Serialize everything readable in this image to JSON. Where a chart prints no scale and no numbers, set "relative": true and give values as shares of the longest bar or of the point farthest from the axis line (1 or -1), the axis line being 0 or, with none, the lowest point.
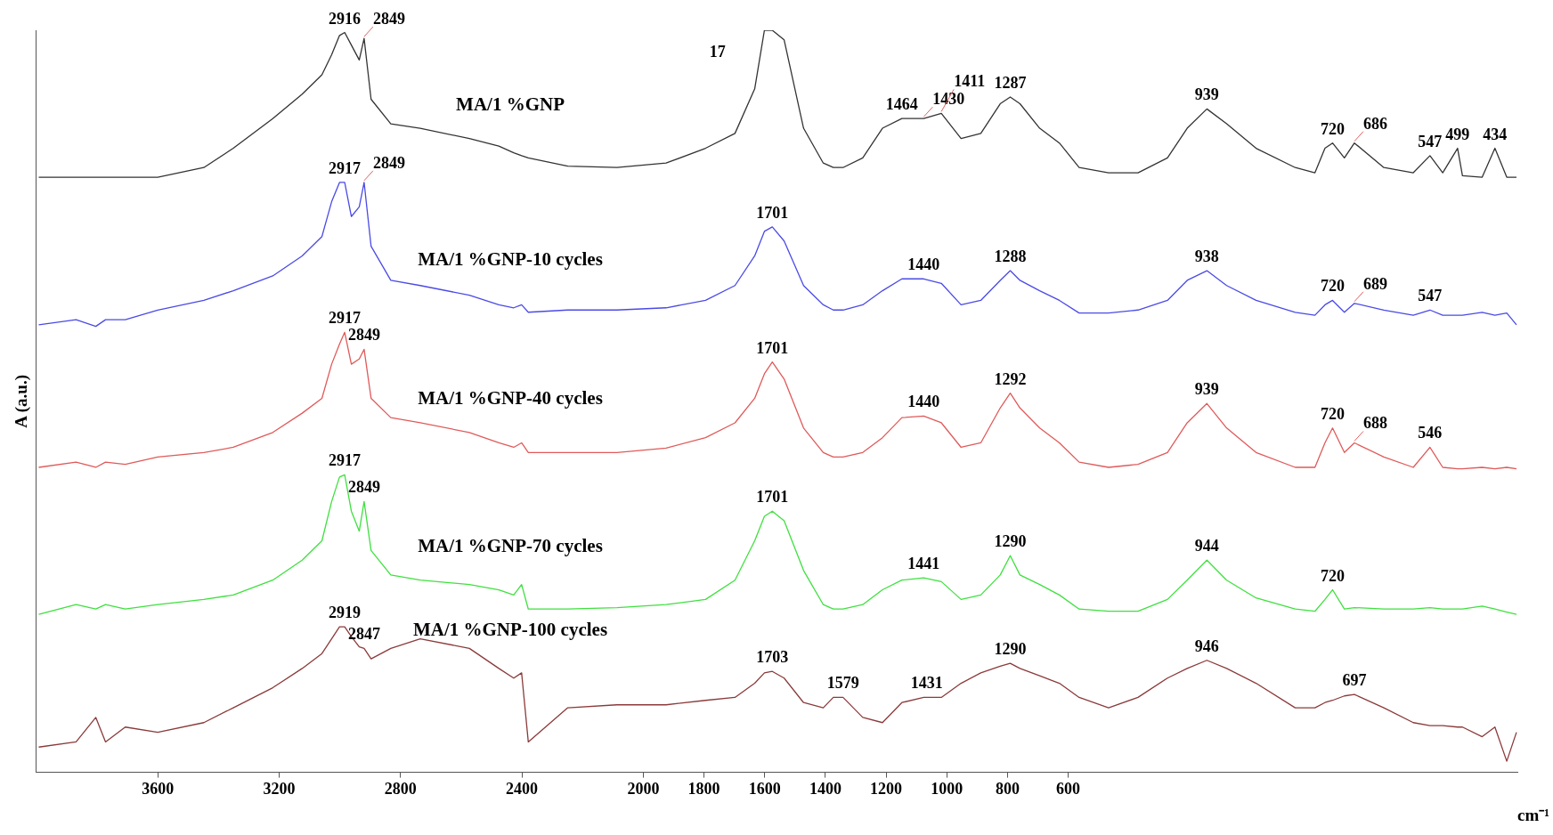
{
  "chart_data": {
    "type": "line",
    "relative": true,
    "xlabel": "cm⁻¹",
    "ylabel": "A (a.u.)",
    "xlim": [
      4000,
      -880
    ],
    "xticks": [
      3600,
      3200,
      2800,
      2400,
      2000,
      1800,
      1600,
      1400,
      1200,
      1000,
      800,
      600
    ],
    "x": [
      3992,
      3869,
      3804,
      3772,
      3707,
      3600,
      3448,
      3351,
      3221,
      3124,
      3059,
      3027,
      3001,
      2984,
      2962,
      2936,
      2920,
      2897,
      2832,
      2735,
      2573,
      2476,
      2427,
      2401,
      2379,
      2249,
      2087,
      1925,
      1795,
      1698,
      1633,
      1601,
      1575,
      1536,
      1472,
      1407,
      1374,
      1342,
      1277,
      1212,
      1148,
      1076,
      1018,
      953,
      888,
      824,
      791,
      759,
      694,
      629,
      564,
      467,
      370,
      273,
      208,
      143,
      78,
      -19,
      -148,
      -213,
      -246,
      -271,
      -310,
      -343,
      -440,
      -537,
      -592,
      -634,
      -683,
      -699,
      -764,
      -806,
      -845,
      -877
    ],
    "series": [
      {
        "name": "MA/1 %GNP",
        "color": "#333333",
        "values": [
          0.802,
          0.802,
          0.802,
          0.802,
          0.802,
          0.802,
          0.815,
          0.841,
          0.881,
          0.914,
          0.94,
          0.967,
          0.993,
          0.997,
          0.98,
          0.96,
          0.989,
          0.907,
          0.874,
          0.868,
          0.854,
          0.844,
          0.835,
          0.831,
          0.828,
          0.817,
          0.815,
          0.821,
          0.841,
          0.861,
          0.921,
          1,
          1,
          0.987,
          0.868,
          0.821,
          0.815,
          0.815,
          0.828,
          0.868,
          0.881,
          0.881,
          0.888,
          0.854,
          0.861,
          0.901,
          0.91,
          0.901,
          0.868,
          0.848,
          0.815,
          0.808,
          0.808,
          0.828,
          0.868,
          0.894,
          0.874,
          0.841,
          0.815,
          0.808,
          0.841,
          0.848,
          0.828,
          0.848,
          0.815,
          0.808,
          0.831,
          0.808,
          0.841,
          0.804,
          0.802,
          0.841,
          0.802,
          0.802
        ]
      },
      {
        "name": "MA/1 %GNP-10 cycles",
        "color": "#4a4ae6",
        "values": [
          0.603,
          0.61,
          0.601,
          0.61,
          0.61,
          0.623,
          0.636,
          0.649,
          0.669,
          0.696,
          0.722,
          0.769,
          0.795,
          0.795,
          0.749,
          0.762,
          0.795,
          0.709,
          0.663,
          0.656,
          0.643,
          0.63,
          0.626,
          0.63,
          0.62,
          0.623,
          0.623,
          0.626,
          0.636,
          0.656,
          0.696,
          0.729,
          0.735,
          0.716,
          0.656,
          0.63,
          0.623,
          0.623,
          0.63,
          0.649,
          0.665,
          0.665,
          0.659,
          0.63,
          0.636,
          0.663,
          0.676,
          0.663,
          0.649,
          0.636,
          0.619,
          0.619,
          0.623,
          0.636,
          0.663,
          0.676,
          0.656,
          0.636,
          0.62,
          0.616,
          0.63,
          0.636,
          0.62,
          0.632,
          0.623,
          0.616,
          0.623,
          0.616,
          0.616,
          0.616,
          0.62,
          0.616,
          0.619,
          0.603
        ]
      },
      {
        "name": "MA/1 %GNP-40 cycles",
        "color": "#e05a5a",
        "values": [
          0.411,
          0.418,
          0.411,
          0.418,
          0.415,
          0.425,
          0.431,
          0.438,
          0.458,
          0.484,
          0.504,
          0.55,
          0.577,
          0.593,
          0.55,
          0.557,
          0.57,
          0.504,
          0.478,
          0.471,
          0.458,
          0.444,
          0.438,
          0.444,
          0.431,
          0.431,
          0.431,
          0.437,
          0.451,
          0.471,
          0.504,
          0.537,
          0.553,
          0.53,
          0.464,
          0.431,
          0.425,
          0.425,
          0.431,
          0.451,
          0.478,
          0.48,
          0.471,
          0.438,
          0.444,
          0.491,
          0.511,
          0.491,
          0.464,
          0.444,
          0.418,
          0.411,
          0.415,
          0.431,
          0.471,
          0.497,
          0.464,
          0.431,
          0.411,
          0.411,
          0.444,
          0.464,
          0.431,
          0.444,
          0.425,
          0.411,
          0.438,
          0.411,
          0.409,
          0.409,
          0.411,
          0.409,
          0.411,
          0.409
        ]
      },
      {
        "name": "MA/1 %GNP-70 cycles",
        "color": "#3fe03f",
        "values": [
          0.213,
          0.226,
          0.22,
          0.226,
          0.22,
          0.226,
          0.233,
          0.239,
          0.259,
          0.286,
          0.312,
          0.365,
          0.398,
          0.401,
          0.352,
          0.325,
          0.365,
          0.299,
          0.266,
          0.259,
          0.253,
          0.246,
          0.239,
          0.253,
          0.22,
          0.22,
          0.222,
          0.226,
          0.233,
          0.259,
          0.312,
          0.345,
          0.352,
          0.339,
          0.272,
          0.226,
          0.22,
          0.22,
          0.226,
          0.246,
          0.259,
          0.262,
          0.257,
          0.233,
          0.239,
          0.266,
          0.292,
          0.266,
          0.253,
          0.239,
          0.22,
          0.217,
          0.217,
          0.233,
          0.259,
          0.286,
          0.259,
          0.235,
          0.22,
          0.217,
          0.233,
          0.246,
          0.22,
          0.222,
          0.22,
          0.22,
          0.222,
          0.22,
          0.22,
          0.22,
          0.224,
          0.22,
          0.216,
          0.213
        ]
      },
      {
        "name": "MA/1 %GNP-100 cycles",
        "color": "#8b3a3a",
        "values": [
          0.034,
          0.041,
          0.074,
          0.041,
          0.061,
          0.054,
          0.067,
          0.087,
          0.114,
          0.14,
          0.16,
          0.18,
          0.196,
          0.196,
          0.183,
          0.169,
          0.167,
          0.153,
          0.167,
          0.18,
          0.167,
          0.14,
          0.127,
          0.134,
          0.041,
          0.087,
          0.091,
          0.091,
          0.097,
          0.101,
          0.12,
          0.134,
          0.136,
          0.127,
          0.094,
          0.087,
          0.101,
          0.101,
          0.074,
          0.067,
          0.094,
          0.101,
          0.101,
          0.12,
          0.134,
          0.143,
          0.147,
          0.14,
          0.13,
          0.12,
          0.101,
          0.087,
          0.101,
          0.127,
          0.14,
          0.151,
          0.14,
          0.12,
          0.087,
          0.087,
          0.094,
          0.097,
          0.103,
          0.105,
          0.087,
          0.067,
          0.063,
          0.063,
          0.061,
          0.061,
          0.048,
          0.061,
          0.015,
          0.054
        ]
      }
    ],
    "annotations": [
      {
        "text": "2916",
        "x": 2984,
        "y": 0.997
      },
      {
        "text": "2849",
        "x": 2920,
        "y": 0.989
      },
      "17",
      {
        "text": "1464",
        "x": 1148,
        "y": 0.881
      },
      {
        "text": "1430",
        "x": 1076,
        "y": 0.881
      },
      {
        "text": "1411",
        "x": 1018,
        "y": 0.888
      },
      {
        "text": "1287",
        "x": 791,
        "y": 0.91
      },
      {
        "text": "939",
        "x": 143,
        "y": 0.894
      },
      {
        "text": "720",
        "x": -271,
        "y": 0.848
      },
      {
        "text": "686",
        "x": -343,
        "y": 0.848
      },
      {
        "text": "547",
        "x": -592,
        "y": 0.831
      },
      {
        "text": "499",
        "x": -683,
        "y": 0.841
      },
      {
        "text": "434",
        "x": -806,
        "y": 0.841
      },
      {
        "text": "2917",
        "x": 2984,
        "y": 0.795
      },
      {
        "text": "2849",
        "x": 2920,
        "y": 0.795
      },
      {
        "text": "1701",
        "x": 1575,
        "y": 0.735
      },
      {
        "text": "1440",
        "x": 1076,
        "y": 0.665
      },
      {
        "text": "1288",
        "x": 791,
        "y": 0.676
      },
      {
        "text": "938",
        "x": 143,
        "y": 0.676
      },
      {
        "text": "720",
        "x": -271,
        "y": 0.636
      },
      {
        "text": "689",
        "x": -343,
        "y": 0.632
      },
      {
        "text": "547",
        "x": -592,
        "y": 0.623
      },
      {
        "text": "2917",
        "x": 2984,
        "y": 0.593
      },
      {
        "text": "2849",
        "x": 2920,
        "y": 0.57
      },
      {
        "text": "1701",
        "x": 1575,
        "y": 0.553
      },
      {
        "text": "1440",
        "x": 1076,
        "y": 0.48
      },
      {
        "text": "1292",
        "x": 791,
        "y": 0.511
      },
      {
        "text": "939",
        "x": 143,
        "y": 0.497
      },
      {
        "text": "720",
        "x": -271,
        "y": 0.464
      },
      {
        "text": "688",
        "x": -343,
        "y": 0.444
      },
      {
        "text": "546",
        "x": -592,
        "y": 0.438
      },
      {
        "text": "2917",
        "x": 2984,
        "y": 0.401
      },
      {
        "text": "2849",
        "x": 2920,
        "y": 0.365
      },
      {
        "text": "1701",
        "x": 1575,
        "y": 0.352
      },
      {
        "text": "1441",
        "x": 1076,
        "y": 0.262
      },
      {
        "text": "1290",
        "x": 791,
        "y": 0.292
      },
      {
        "text": "944",
        "x": 143,
        "y": 0.286
      },
      {
        "text": "720",
        "x": -271,
        "y": 0.246
      },
      {
        "text": "2919",
        "x": 2984,
        "y": 0.196
      },
      {
        "text": "2847",
        "x": 2920,
        "y": 0.167
      },
      {
        "text": "1703",
        "x": 1575,
        "y": 0.136
      },
      {
        "text": "1579",
        "x": 1342,
        "y": 0.101
      },
      {
        "text": "1431",
        "x": 1066,
        "y": 0.101
      },
      {
        "text": "1290",
        "x": 791,
        "y": 0.147
      },
      {
        "text": "946",
        "x": 143,
        "y": 0.151
      },
      {
        "text": "697",
        "x": -343,
        "y": 0.105
      }
    ]
  }
}
